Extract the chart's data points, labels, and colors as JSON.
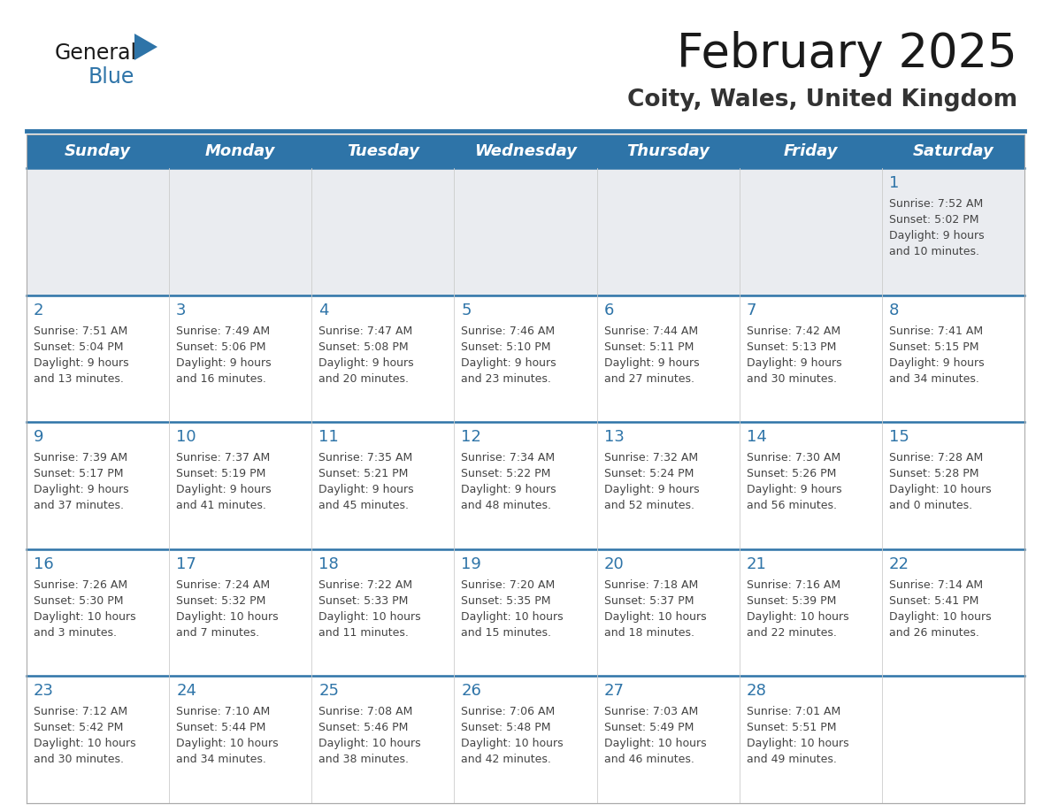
{
  "title": "February 2025",
  "subtitle": "Coity, Wales, United Kingdom",
  "days_of_week": [
    "Sunday",
    "Monday",
    "Tuesday",
    "Wednesday",
    "Thursday",
    "Friday",
    "Saturday"
  ],
  "header_bg": "#2E74A8",
  "header_text": "#FFFFFF",
  "separator_color": "#2E74A8",
  "day_number_color": "#2E74A8",
  "cell_text_color": "#444444",
  "title_color": "#1a1a1a",
  "subtitle_color": "#333333",
  "empty_row_bg": "#EAECF0",
  "normal_row_bg": "#FFFFFF",
  "calendar_data": [
    [
      {
        "day": null,
        "info": ""
      },
      {
        "day": null,
        "info": ""
      },
      {
        "day": null,
        "info": ""
      },
      {
        "day": null,
        "info": ""
      },
      {
        "day": null,
        "info": ""
      },
      {
        "day": null,
        "info": ""
      },
      {
        "day": 1,
        "info": "Sunrise: 7:52 AM\nSunset: 5:02 PM\nDaylight: 9 hours\nand 10 minutes."
      }
    ],
    [
      {
        "day": 2,
        "info": "Sunrise: 7:51 AM\nSunset: 5:04 PM\nDaylight: 9 hours\nand 13 minutes."
      },
      {
        "day": 3,
        "info": "Sunrise: 7:49 AM\nSunset: 5:06 PM\nDaylight: 9 hours\nand 16 minutes."
      },
      {
        "day": 4,
        "info": "Sunrise: 7:47 AM\nSunset: 5:08 PM\nDaylight: 9 hours\nand 20 minutes."
      },
      {
        "day": 5,
        "info": "Sunrise: 7:46 AM\nSunset: 5:10 PM\nDaylight: 9 hours\nand 23 minutes."
      },
      {
        "day": 6,
        "info": "Sunrise: 7:44 AM\nSunset: 5:11 PM\nDaylight: 9 hours\nand 27 minutes."
      },
      {
        "day": 7,
        "info": "Sunrise: 7:42 AM\nSunset: 5:13 PM\nDaylight: 9 hours\nand 30 minutes."
      },
      {
        "day": 8,
        "info": "Sunrise: 7:41 AM\nSunset: 5:15 PM\nDaylight: 9 hours\nand 34 minutes."
      }
    ],
    [
      {
        "day": 9,
        "info": "Sunrise: 7:39 AM\nSunset: 5:17 PM\nDaylight: 9 hours\nand 37 minutes."
      },
      {
        "day": 10,
        "info": "Sunrise: 7:37 AM\nSunset: 5:19 PM\nDaylight: 9 hours\nand 41 minutes."
      },
      {
        "day": 11,
        "info": "Sunrise: 7:35 AM\nSunset: 5:21 PM\nDaylight: 9 hours\nand 45 minutes."
      },
      {
        "day": 12,
        "info": "Sunrise: 7:34 AM\nSunset: 5:22 PM\nDaylight: 9 hours\nand 48 minutes."
      },
      {
        "day": 13,
        "info": "Sunrise: 7:32 AM\nSunset: 5:24 PM\nDaylight: 9 hours\nand 52 minutes."
      },
      {
        "day": 14,
        "info": "Sunrise: 7:30 AM\nSunset: 5:26 PM\nDaylight: 9 hours\nand 56 minutes."
      },
      {
        "day": 15,
        "info": "Sunrise: 7:28 AM\nSunset: 5:28 PM\nDaylight: 10 hours\nand 0 minutes."
      }
    ],
    [
      {
        "day": 16,
        "info": "Sunrise: 7:26 AM\nSunset: 5:30 PM\nDaylight: 10 hours\nand 3 minutes."
      },
      {
        "day": 17,
        "info": "Sunrise: 7:24 AM\nSunset: 5:32 PM\nDaylight: 10 hours\nand 7 minutes."
      },
      {
        "day": 18,
        "info": "Sunrise: 7:22 AM\nSunset: 5:33 PM\nDaylight: 10 hours\nand 11 minutes."
      },
      {
        "day": 19,
        "info": "Sunrise: 7:20 AM\nSunset: 5:35 PM\nDaylight: 10 hours\nand 15 minutes."
      },
      {
        "day": 20,
        "info": "Sunrise: 7:18 AM\nSunset: 5:37 PM\nDaylight: 10 hours\nand 18 minutes."
      },
      {
        "day": 21,
        "info": "Sunrise: 7:16 AM\nSunset: 5:39 PM\nDaylight: 10 hours\nand 22 minutes."
      },
      {
        "day": 22,
        "info": "Sunrise: 7:14 AM\nSunset: 5:41 PM\nDaylight: 10 hours\nand 26 minutes."
      }
    ],
    [
      {
        "day": 23,
        "info": "Sunrise: 7:12 AM\nSunset: 5:42 PM\nDaylight: 10 hours\nand 30 minutes."
      },
      {
        "day": 24,
        "info": "Sunrise: 7:10 AM\nSunset: 5:44 PM\nDaylight: 10 hours\nand 34 minutes."
      },
      {
        "day": 25,
        "info": "Sunrise: 7:08 AM\nSunset: 5:46 PM\nDaylight: 10 hours\nand 38 minutes."
      },
      {
        "day": 26,
        "info": "Sunrise: 7:06 AM\nSunset: 5:48 PM\nDaylight: 10 hours\nand 42 minutes."
      },
      {
        "day": 27,
        "info": "Sunrise: 7:03 AM\nSunset: 5:49 PM\nDaylight: 10 hours\nand 46 minutes."
      },
      {
        "day": 28,
        "info": "Sunrise: 7:01 AM\nSunset: 5:51 PM\nDaylight: 10 hours\nand 49 minutes."
      },
      {
        "day": null,
        "info": ""
      }
    ]
  ]
}
